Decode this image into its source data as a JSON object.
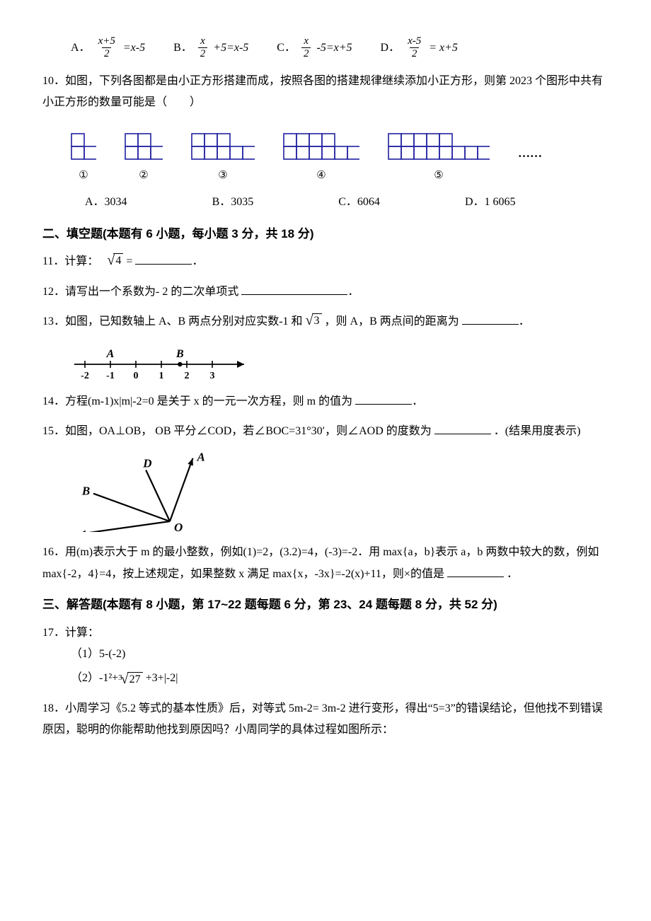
{
  "q9": {
    "A_label": "A．",
    "A_num": "x+5",
    "A_den": "2",
    "A_rhs": "=x-5",
    "B_label": "B．",
    "B_num": "x",
    "B_den": "2",
    "B_rhs": "+5=x-5",
    "C_label": "C．",
    "C_num": "x",
    "C_den": "2",
    "C_rhs": "-5=x+5",
    "D_label": "D．",
    "D_num": "x-5",
    "D_den": "2",
    "D_rhs": "= x+5"
  },
  "q10": {
    "text": "10．如图，下列各图都是由小正方形搭建而成，按照各图的搭建规律继续添加小正方形，则第 2023 个图形中共有小正方形的数量可能是（　　）",
    "ellipsis": "……",
    "circ1": "①",
    "circ2": "②",
    "circ3": "③",
    "circ4": "④",
    "circ5": "⑤",
    "A": "A．3034",
    "B": "B．3035",
    "C": "C．6064",
    "D": "D．1 6065",
    "shape_stroke": "#2020a0",
    "shape_stroke_width": 1.6,
    "cell": 18
  },
  "section2": "二、填空题(本题有 6 小题，每小题 3 分，共 18 分)",
  "q11": {
    "pre": "11．计算：　",
    "radicand": "4",
    "post": " ="
  },
  "q12": {
    "text": "12．请写出一个系数为- 2 的二次单项式"
  },
  "q13": {
    "pre": "13．如图，已知数轴上 A、B 两点分别对应实数-1 和",
    "radicand": "3",
    "post": " ，则 A，B 两点间的距离为",
    "numberline": {
      "ticks": [
        "-2",
        "-1",
        "0",
        "1",
        "2",
        "3"
      ],
      "A_label": "A",
      "B_label": "B",
      "A_x": -1,
      "B_x": 1.73
    }
  },
  "q14": {
    "text": "14．方程(m-1)x|m|-2=0 是关于 x 的一元一次方程，则 m 的值为"
  },
  "q15": {
    "text": "15．如图，OA⊥OB，   OB 平分∠COD，若∠BOC=31°30′，则∠AOD 的度数为",
    "post": "．(结果用度表示)",
    "labels": {
      "A": "A",
      "B": "B",
      "C": "C",
      "D": "D",
      "O": "O"
    }
  },
  "q16": {
    "text": "16．用(m)表示大于 m 的最小整数，例如(1)=2，(3.2)=4，(-3)=-2．用 max{a，b}表示 a，b 两数中较大的数，例如 max{-2，4}=4，按上述规定，如果整数 x 满足 max{x，-3x}=-2(x)+11，则×的值是",
    "post": " ．"
  },
  "section3": "三、解答题(本题有 8 小题，第 17~22 题每题 6 分，第 23、24 题每题 8 分，共 52 分)",
  "q17": {
    "title": "17．计算：",
    "sub1": "（1）5-(-2)",
    "sub2_pre": "（2）-1²+",
    "sub2_preexp": "3",
    "sub2_radicand": "27",
    "sub2_post": " +3+|-2|"
  },
  "q18": {
    "text": "18．小周学习《5.2 等式的基本性质》后，对等式 5m-2= 3m-2 进行变形，得出“5=3”的错误结论，但他找不到错误原因，聪明的你能帮助他找到原因吗？小周同学的具体过程如图所示："
  }
}
